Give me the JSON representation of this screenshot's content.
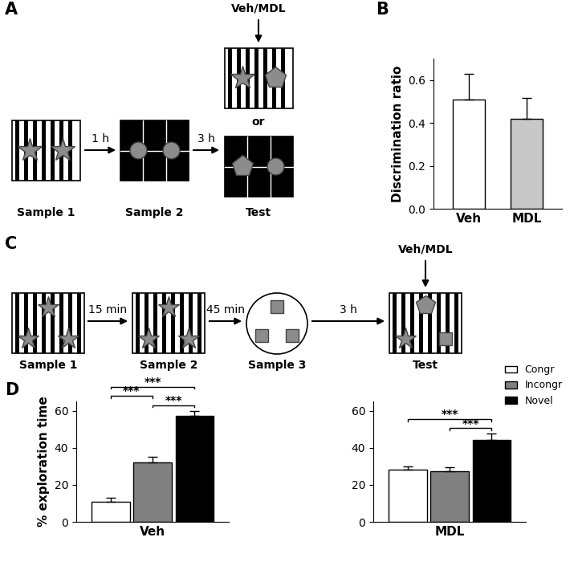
{
  "panel_labels": [
    "A",
    "B",
    "C",
    "D"
  ],
  "diagram_a": {
    "samples": [
      "Sample 1",
      "Sample 2"
    ],
    "test": "Test",
    "delays": [
      "1 h",
      "3 h"
    ],
    "treatment": "Veh/MDL",
    "alternative": "or"
  },
  "diagram_c": {
    "samples": [
      "Sample 1",
      "Sample 2",
      "Sample 3"
    ],
    "test": "Test",
    "delays": [
      "15 min",
      "45 min",
      "3 h"
    ],
    "treatment": "Veh/MDL"
  },
  "chart_data": [
    {
      "type": "bar",
      "categories": [
        "Veh",
        "MDL"
      ],
      "values": [
        0.51,
        0.42
      ],
      "errors": [
        0.12,
        0.095
      ],
      "colors": [
        "#ffffff",
        "#c8c8c8"
      ],
      "y_label": "Discrimination ratio",
      "ylim": [
        0,
        0.7
      ],
      "yticks": [
        {
          "value": 0,
          "label": "0.0"
        },
        0.2,
        0.4,
        0.6
      ]
    },
    {
      "type": "bar",
      "categories": [
        "Veh"
      ],
      "y_label": "% exploration time",
      "series": [
        {
          "name": "Congr",
          "color": "#ffffff",
          "values": [
            11
          ],
          "errors": [
            2
          ]
        },
        {
          "name": "Incongr",
          "color": "#808080",
          "values": [
            32
          ],
          "errors": [
            3
          ]
        },
        {
          "name": "Novel",
          "color": "#000000",
          "values": [
            57
          ],
          "errors": [
            3
          ]
        }
      ],
      "ylim": [
        0,
        65
      ],
      "yticks": [
        0,
        20,
        40,
        60
      ],
      "significance": [
        {
          "pair": [
            0,
            2
          ],
          "label": "***"
        },
        {
          "pair": [
            1,
            2
          ],
          "label": "***"
        },
        {
          "pair": [
            0,
            1
          ],
          "label": "***"
        }
      ]
    },
    {
      "type": "bar",
      "categories": [
        "MDL"
      ],
      "series": [
        {
          "name": "Congr",
          "color": "#ffffff",
          "values": [
            28
          ],
          "errors": [
            2
          ]
        },
        {
          "name": "Incongr",
          "color": "#808080",
          "values": [
            27.5
          ],
          "errors": [
            2
          ]
        },
        {
          "name": "Novel",
          "color": "#000000",
          "values": [
            44
          ],
          "errors": [
            3.5
          ]
        }
      ],
      "ylim": [
        0,
        65
      ],
      "yticks": [
        0,
        20,
        40,
        60
      ],
      "legend": "upper right",
      "significance": [
        {
          "pair": [
            0,
            2
          ],
          "label": "***"
        },
        {
          "pair": [
            1,
            2
          ],
          "label": "***"
        }
      ]
    }
  ]
}
